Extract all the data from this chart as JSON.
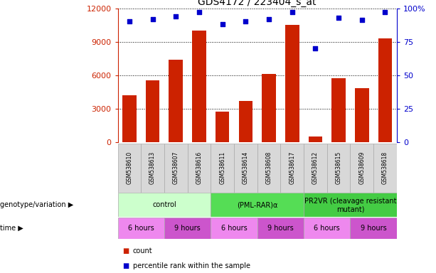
{
  "title": "GDS4172 / 223404_s_at",
  "samples": [
    "GSM538610",
    "GSM538613",
    "GSM538607",
    "GSM538616",
    "GSM538611",
    "GSM538614",
    "GSM538608",
    "GSM538617",
    "GSM538612",
    "GSM538615",
    "GSM538609",
    "GSM538618"
  ],
  "counts": [
    4200,
    5500,
    7400,
    10000,
    2700,
    3700,
    6100,
    10500,
    500,
    5700,
    4800,
    9300
  ],
  "percentile_ranks": [
    90,
    92,
    94,
    97,
    88,
    90,
    92,
    97,
    70,
    93,
    91,
    97
  ],
  "ylim_left": [
    0,
    12000
  ],
  "ylim_right": [
    0,
    100
  ],
  "yticks_left": [
    0,
    3000,
    6000,
    9000,
    12000
  ],
  "yticks_right": [
    0,
    25,
    50,
    75,
    100
  ],
  "bar_color": "#cc2200",
  "scatter_color": "#0000cc",
  "groups": [
    {
      "label": "control",
      "start": 0,
      "end": 4,
      "color": "#ccffcc"
    },
    {
      "label": "(PML-RAR)α",
      "start": 4,
      "end": 8,
      "color": "#55dd55"
    },
    {
      "label": "PR2VR (cleavage resistant\nmutant)",
      "start": 8,
      "end": 12,
      "color": "#44cc44"
    }
  ],
  "time_groups": [
    {
      "label": "6 hours",
      "start": 0,
      "end": 2,
      "color": "#ee88ee"
    },
    {
      "label": "9 hours",
      "start": 2,
      "end": 4,
      "color": "#cc55cc"
    },
    {
      "label": "6 hours",
      "start": 4,
      "end": 6,
      "color": "#ee88ee"
    },
    {
      "label": "9 hours",
      "start": 6,
      "end": 8,
      "color": "#cc55cc"
    },
    {
      "label": "6 hours",
      "start": 8,
      "end": 10,
      "color": "#ee88ee"
    },
    {
      "label": "9 hours",
      "start": 10,
      "end": 12,
      "color": "#cc55cc"
    }
  ],
  "legend_items": [
    {
      "label": "count",
      "color": "#cc2200"
    },
    {
      "label": "percentile rank within the sample",
      "color": "#0000cc"
    }
  ],
  "left_label_color": "#cc2200",
  "right_label_color": "#0000cc",
  "xlabel_genotype": "genotype/variation",
  "xlabel_time": "time"
}
